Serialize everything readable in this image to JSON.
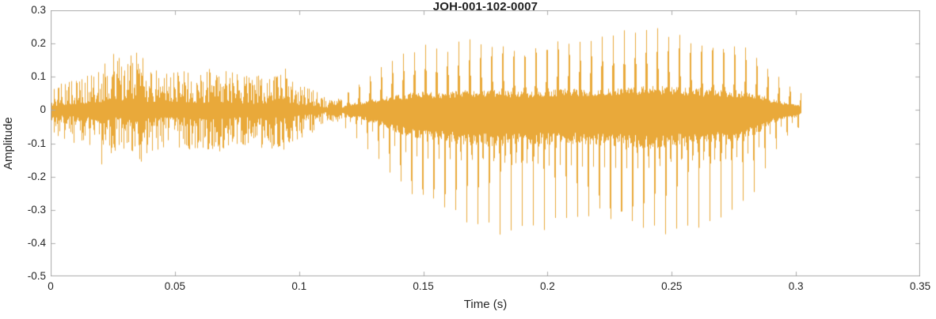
{
  "chart_data": {
    "type": "line",
    "subtype": "audio-waveform",
    "title": "JOH-001-102-0007",
    "xlabel": "Time (s)",
    "ylabel": "Amplitude",
    "xlim": [
      0,
      0.35
    ],
    "ylim": [
      -0.5,
      0.3
    ],
    "grid": false,
    "legend": null,
    "line_color": "#E9A93A",
    "axes_color": "#ababab",
    "text_color": "#262626",
    "x_ticks": {
      "values": [
        0,
        0.05,
        0.1,
        0.15,
        0.2,
        0.25,
        0.3,
        0.35
      ],
      "labels": [
        "0",
        "0.05",
        "0.1",
        "0.15",
        "0.2",
        "0.25",
        "0.3",
        "0.35"
      ]
    },
    "y_ticks": {
      "values": [
        -0.5,
        -0.4,
        -0.3,
        -0.2,
        -0.1,
        0,
        0.1,
        0.2,
        0.3
      ],
      "labels": [
        "-0.5",
        "-0.4",
        "-0.3",
        "-0.2",
        "-0.1",
        "0",
        "0.1",
        "0.2",
        "0.3"
      ]
    },
    "waveform": {
      "pitch_hz": 225,
      "noise_end": 0.112,
      "voiced_start": 0.117,
      "t_end": 0.302,
      "envelope": [
        [
          0.0,
          -0.06,
          0.06
        ],
        [
          0.004,
          -0.09,
          0.08
        ],
        [
          0.01,
          -0.1,
          0.1
        ],
        [
          0.015,
          -0.12,
          0.11
        ],
        [
          0.02,
          -0.2,
          0.13
        ],
        [
          0.025,
          -0.12,
          0.19
        ],
        [
          0.03,
          -0.14,
          0.15
        ],
        [
          0.035,
          -0.17,
          0.19
        ],
        [
          0.04,
          -0.13,
          0.12
        ],
        [
          0.05,
          -0.12,
          0.13
        ],
        [
          0.06,
          -0.14,
          0.12
        ],
        [
          0.07,
          -0.12,
          0.13
        ],
        [
          0.08,
          -0.11,
          0.1
        ],
        [
          0.09,
          -0.12,
          0.11
        ],
        [
          0.095,
          -0.12,
          0.13
        ],
        [
          0.1,
          -0.09,
          0.08
        ],
        [
          0.105,
          -0.07,
          0.07
        ],
        [
          0.11,
          -0.04,
          0.04
        ],
        [
          0.113,
          -0.02,
          0.02
        ],
        [
          0.117,
          -0.03,
          0.03
        ],
        [
          0.12,
          -0.08,
          0.07
        ],
        [
          0.125,
          -0.1,
          0.09
        ],
        [
          0.13,
          -0.15,
          0.12
        ],
        [
          0.135,
          -0.2,
          0.15
        ],
        [
          0.14,
          -0.26,
          0.17
        ],
        [
          0.145,
          -0.3,
          0.19
        ],
        [
          0.15,
          -0.33,
          0.2
        ],
        [
          0.155,
          -0.34,
          0.19
        ],
        [
          0.16,
          -0.35,
          0.2
        ],
        [
          0.165,
          -0.37,
          0.21
        ],
        [
          0.17,
          -0.38,
          0.22
        ],
        [
          0.175,
          -0.39,
          0.21
        ],
        [
          0.18,
          -0.4,
          0.22
        ],
        [
          0.185,
          -0.39,
          0.21
        ],
        [
          0.19,
          -0.38,
          0.2
        ],
        [
          0.195,
          -0.37,
          0.21
        ],
        [
          0.2,
          -0.38,
          0.22
        ],
        [
          0.205,
          -0.37,
          0.23
        ],
        [
          0.21,
          -0.37,
          0.23
        ],
        [
          0.215,
          -0.38,
          0.22
        ],
        [
          0.22,
          -0.38,
          0.23
        ],
        [
          0.225,
          -0.39,
          0.24
        ],
        [
          0.23,
          -0.4,
          0.24
        ],
        [
          0.235,
          -0.41,
          0.25
        ],
        [
          0.24,
          -0.42,
          0.26
        ],
        [
          0.245,
          -0.42,
          0.26
        ],
        [
          0.25,
          -0.4,
          0.25
        ],
        [
          0.255,
          -0.39,
          0.24
        ],
        [
          0.26,
          -0.38,
          0.23
        ],
        [
          0.265,
          -0.36,
          0.22
        ],
        [
          0.27,
          -0.35,
          0.22
        ],
        [
          0.275,
          -0.33,
          0.21
        ],
        [
          0.28,
          -0.3,
          0.2
        ],
        [
          0.285,
          -0.25,
          0.18
        ],
        [
          0.29,
          -0.15,
          0.12
        ],
        [
          0.295,
          -0.1,
          0.09
        ],
        [
          0.3,
          -0.08,
          0.07
        ],
        [
          0.302,
          -0.05,
          0.05
        ]
      ]
    }
  }
}
